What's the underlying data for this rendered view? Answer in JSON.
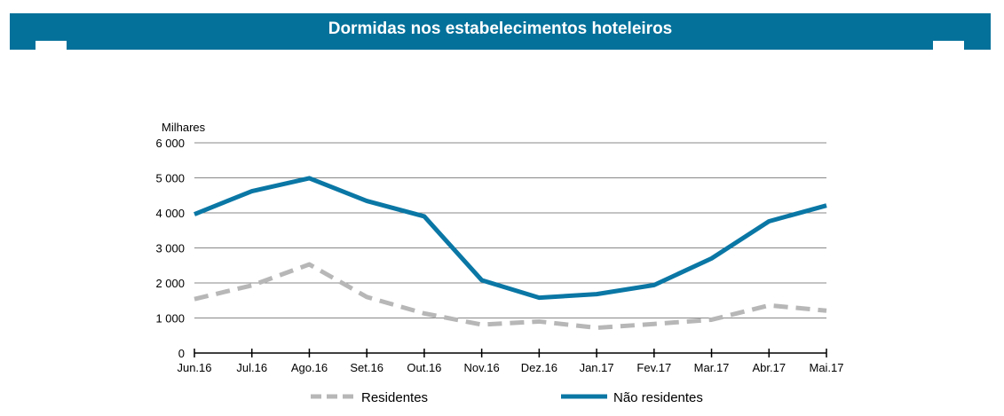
{
  "header": {
    "title": "Dormidas nos estabelecimentos hoteleiros"
  },
  "chart_data": {
    "type": "line",
    "title": "Dormidas nos estabelecimentos hoteleiros",
    "ylabel": "Milhares",
    "xlabel": "",
    "ylim": [
      0,
      6000
    ],
    "yticks": [
      0,
      1000,
      2000,
      3000,
      4000,
      5000,
      6000
    ],
    "ytick_labels": [
      "0",
      "1 000",
      "2 000",
      "3 000",
      "4 000",
      "5 000",
      "6 000"
    ],
    "categories": [
      "Jun.16",
      "Jul.16",
      "Ago.16",
      "Set.16",
      "Out.16",
      "Nov.16",
      "Dez.16",
      "Jan.17",
      "Fev.17",
      "Mar.17",
      "Abr.17",
      "Mai.17"
    ],
    "grid": true,
    "legend_position": "bottom",
    "series": [
      {
        "name": "Residentes",
        "color": "#b7b7b7",
        "style": "dashed",
        "values": [
          1540,
          1930,
          2530,
          1600,
          1130,
          810,
          900,
          720,
          830,
          950,
          1360,
          1210
        ]
      },
      {
        "name": "Não residentes",
        "color": "#0a77a5",
        "style": "solid",
        "values": [
          3960,
          4620,
          4990,
          4340,
          3900,
          2080,
          1580,
          1680,
          1940,
          2700,
          3760,
          4210
        ]
      }
    ]
  }
}
